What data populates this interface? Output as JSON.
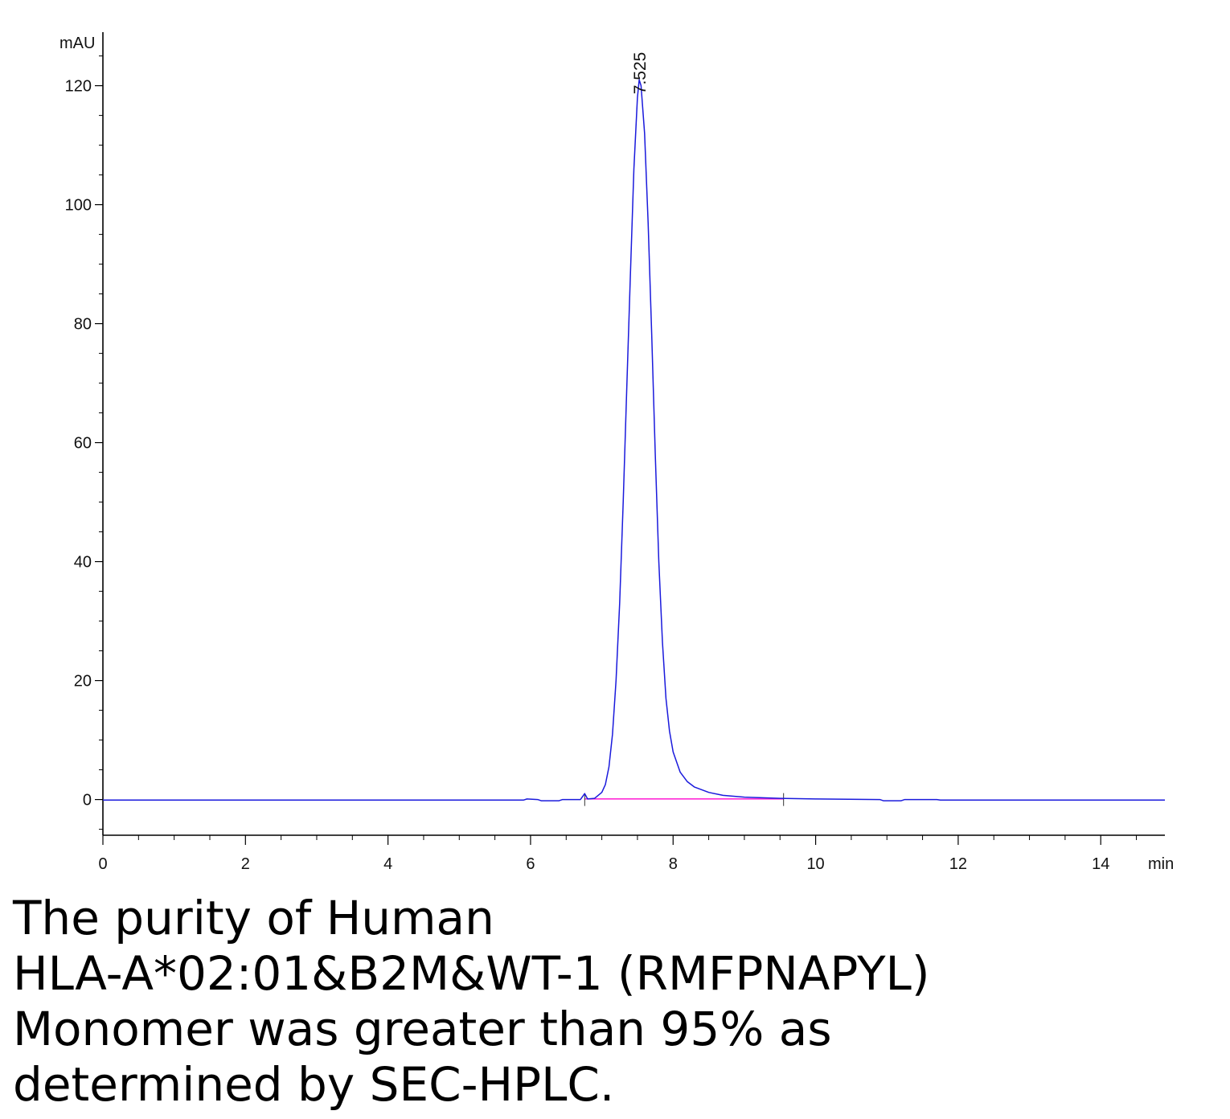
{
  "chart_data": {
    "type": "line",
    "title": "",
    "xlabel": "min",
    "ylabel": "mAU",
    "xlim": [
      0,
      14.9
    ],
    "ylim": [
      -6,
      129
    ],
    "x_ticks": [
      0,
      2,
      4,
      6,
      8,
      10,
      12,
      14
    ],
    "x_tick_labels": [
      "0",
      "2",
      "4",
      "6",
      "8",
      "10",
      "12",
      "14"
    ],
    "y_ticks": [
      0,
      20,
      40,
      60,
      80,
      100,
      120
    ],
    "y_tick_labels": [
      "0",
      "20",
      "40",
      "60",
      "80",
      "100",
      "120"
    ],
    "grid": false,
    "colors": {
      "signal": "#1a1adc",
      "baseline": "#ff2bd6",
      "axis": "#000000"
    },
    "series": [
      {
        "points": [
          [
            0.0,
            -0.1
          ],
          [
            2.0,
            -0.1
          ],
          [
            4.0,
            -0.1
          ],
          [
            5.9,
            -0.1
          ],
          [
            5.95,
            0.1
          ],
          [
            6.1,
            0.0
          ],
          [
            6.15,
            -0.2
          ],
          [
            6.4,
            -0.2
          ],
          [
            6.45,
            0.0
          ],
          [
            6.7,
            0.0
          ],
          [
            6.76,
            1.0
          ],
          [
            6.8,
            0.1
          ],
          [
            6.9,
            0.2
          ],
          [
            7.0,
            1.2
          ],
          [
            7.05,
            2.5
          ],
          [
            7.1,
            5.5
          ],
          [
            7.15,
            11.0
          ],
          [
            7.2,
            20.0
          ],
          [
            7.25,
            33.0
          ],
          [
            7.3,
            50.0
          ],
          [
            7.35,
            69.0
          ],
          [
            7.4,
            88.0
          ],
          [
            7.45,
            106.0
          ],
          [
            7.5,
            118.0
          ],
          [
            7.525,
            121.0
          ],
          [
            7.55,
            120.0
          ],
          [
            7.6,
            112.0
          ],
          [
            7.65,
            97.0
          ],
          [
            7.7,
            78.0
          ],
          [
            7.75,
            58.0
          ],
          [
            7.8,
            40.0
          ],
          [
            7.85,
            26.5
          ],
          [
            7.9,
            17.0
          ],
          [
            7.95,
            11.5
          ],
          [
            8.0,
            8.0
          ],
          [
            8.1,
            4.6
          ],
          [
            8.2,
            3.0
          ],
          [
            8.3,
            2.1
          ],
          [
            8.5,
            1.2
          ],
          [
            8.7,
            0.7
          ],
          [
            9.0,
            0.4
          ],
          [
            9.5,
            0.2
          ],
          [
            10.0,
            0.1
          ],
          [
            10.9,
            0.0
          ],
          [
            10.95,
            -0.2
          ],
          [
            11.2,
            -0.2
          ],
          [
            11.25,
            0.0
          ],
          [
            11.7,
            0.0
          ],
          [
            11.75,
            -0.1
          ],
          [
            14.9,
            -0.1
          ]
        ]
      }
    ],
    "baseline_segment": {
      "x": [
        6.76,
        9.55
      ],
      "y": [
        0.1,
        0.1
      ]
    },
    "event_marks_x": [
      6.76,
      9.55
    ],
    "peaks": [
      {
        "retention_time": 7.525,
        "height": 121.0,
        "label": "7.525"
      }
    ]
  },
  "caption": {
    "lines": [
      "The purity of Human",
      "HLA-A*02:01&B2M&WT-1 (RMFPNAPYL)",
      "Monomer was greater than 95% as",
      "determined by SEC-HPLC."
    ]
  }
}
